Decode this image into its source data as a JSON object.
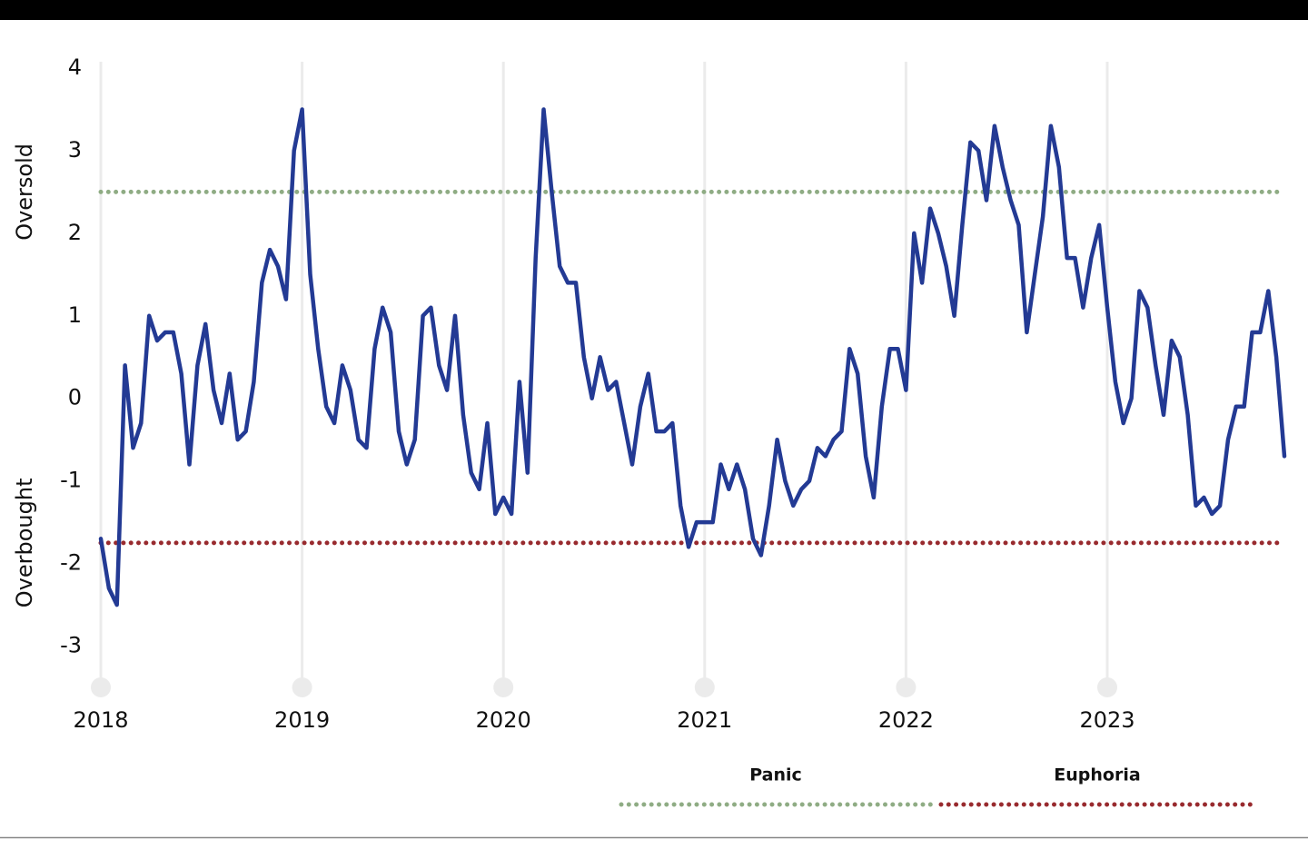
{
  "chart_data": {
    "type": "line",
    "annotations": [
      "Oversold",
      "Overbought"
    ],
    "xlim": [
      2018,
      2023.88
    ],
    "xticks": [
      2018,
      2019,
      2020,
      2021,
      2022,
      2023
    ],
    "ylim": [
      -3.5,
      4
    ],
    "yticks": [
      -3,
      -2,
      -1,
      0,
      1,
      2,
      3,
      4
    ],
    "grid": true,
    "reference_lines": [
      {
        "name": "Panic",
        "value": 2.5,
        "color": "#8fac84"
      },
      {
        "name": "Euphoria",
        "value": -1.75,
        "color": "#982a2e"
      }
    ],
    "x": [
      2018.0,
      2018.04,
      2018.08,
      2018.12,
      2018.16,
      2018.2,
      2018.24,
      2018.28,
      2018.32,
      2018.36,
      2018.4,
      2018.44,
      2018.48,
      2018.52,
      2018.56,
      2018.6,
      2018.64,
      2018.68,
      2018.72,
      2018.76,
      2018.8,
      2018.84,
      2018.88,
      2018.92,
      2018.96,
      2019.0,
      2019.04,
      2019.08,
      2019.12,
      2019.16,
      2019.2,
      2019.24,
      2019.28,
      2019.32,
      2019.36,
      2019.4,
      2019.44,
      2019.48,
      2019.52,
      2019.56,
      2019.6,
      2019.64,
      2019.68,
      2019.72,
      2019.76,
      2019.8,
      2019.84,
      2019.88,
      2019.92,
      2019.96,
      2020.0,
      2020.04,
      2020.08,
      2020.12,
      2020.16,
      2020.2,
      2020.24,
      2020.28,
      2020.32,
      2020.36,
      2020.4,
      2020.44,
      2020.48,
      2020.52,
      2020.56,
      2020.6,
      2020.64,
      2020.68,
      2020.72,
      2020.76,
      2020.8,
      2020.84,
      2020.88,
      2020.92,
      2020.96,
      2021.0,
      2021.04,
      2021.08,
      2021.12,
      2021.16,
      2021.2,
      2021.24,
      2021.28,
      2021.32,
      2021.36,
      2021.4,
      2021.44,
      2021.48,
      2021.52,
      2021.56,
      2021.6,
      2021.64,
      2021.68,
      2021.72,
      2021.76,
      2021.8,
      2021.84,
      2021.88,
      2021.92,
      2021.96,
      2022.0,
      2022.04,
      2022.08,
      2022.12,
      2022.16,
      2022.2,
      2022.24,
      2022.28,
      2022.32,
      2022.36,
      2022.4,
      2022.44,
      2022.48,
      2022.52,
      2022.56,
      2022.6,
      2022.64,
      2022.68,
      2022.72,
      2022.76,
      2022.8,
      2022.84,
      2022.88,
      2022.92,
      2022.96,
      2023.0,
      2023.04,
      2023.08,
      2023.12,
      2023.16,
      2023.2,
      2023.24,
      2023.28,
      2023.32,
      2023.36,
      2023.4,
      2023.44,
      2023.48,
      2023.52,
      2023.56,
      2023.6,
      2023.64,
      2023.68,
      2023.72,
      2023.76,
      2023.8,
      2023.84,
      2023.88
    ],
    "series": [
      {
        "color": "#233a94",
        "values": [
          -1.7,
          -2.3,
          -2.5,
          0.4,
          -0.6,
          -0.3,
          1.0,
          0.7,
          0.8,
          0.8,
          0.3,
          -0.8,
          0.4,
          0.9,
          0.1,
          -0.3,
          0.3,
          -0.5,
          -0.4,
          0.2,
          1.4,
          1.8,
          1.6,
          1.2,
          3.0,
          3.5,
          1.5,
          0.6,
          -0.1,
          -0.3,
          0.4,
          0.1,
          -0.5,
          -0.6,
          0.6,
          1.1,
          0.8,
          -0.4,
          -0.8,
          -0.5,
          1.0,
          1.1,
          0.4,
          0.1,
          1.0,
          -0.2,
          -0.9,
          -1.1,
          -0.3,
          -1.4,
          -1.2,
          -1.4,
          0.2,
          -0.9,
          1.7,
          3.5,
          2.5,
          1.6,
          1.4,
          1.4,
          0.5,
          0.0,
          0.5,
          0.1,
          0.2,
          -0.3,
          -0.8,
          -0.1,
          0.3,
          -0.4,
          -0.4,
          -0.3,
          -1.3,
          -1.8,
          -1.5,
          -1.5,
          -1.5,
          -0.8,
          -1.1,
          -0.8,
          -1.1,
          -1.7,
          -1.9,
          -1.3,
          -0.5,
          -1.0,
          -1.3,
          -1.1,
          -1.0,
          -0.6,
          -0.7,
          -0.5,
          -0.4,
          0.6,
          0.3,
          -0.7,
          -1.2,
          -0.1,
          0.6,
          0.6,
          0.1,
          2.0,
          1.4,
          2.3,
          2.0,
          1.6,
          1.0,
          2.1,
          3.1,
          3.0,
          2.4,
          3.3,
          2.8,
          2.4,
          2.1,
          0.8,
          1.5,
          2.2,
          3.3,
          2.8,
          1.7,
          1.7,
          1.1,
          1.7,
          2.1,
          1.1,
          0.2,
          -0.3,
          0.0,
          1.3,
          1.1,
          0.4,
          -0.2,
          0.7,
          0.5,
          -0.2,
          -1.3,
          -1.2,
          -1.4,
          -1.3,
          -0.5,
          -0.1,
          -0.1,
          0.8,
          0.8,
          1.3,
          0.5,
          -0.7
        ]
      }
    ]
  }
}
